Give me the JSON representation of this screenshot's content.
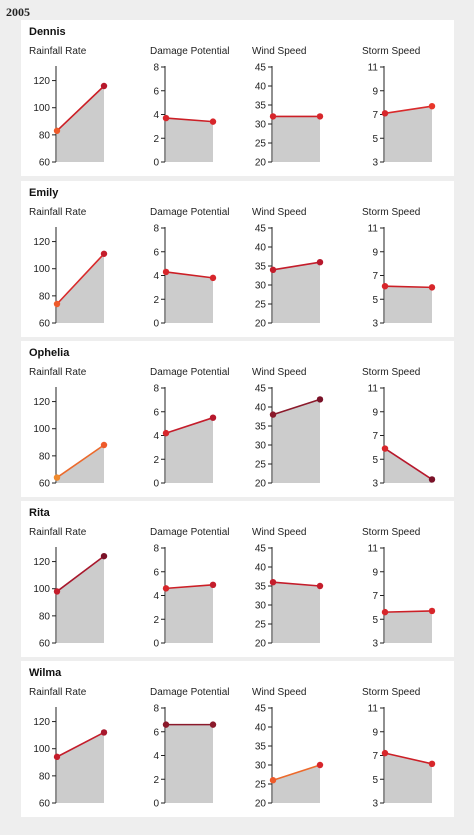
{
  "header": {
    "year": "2005"
  },
  "metric_labels": [
    "Rainfall Rate",
    "Damage Potential",
    "Wind Speed",
    "Storm Speed"
  ],
  "colors": {
    "area": "#cccccc",
    "axis": "#222222",
    "line": "#cc1f26",
    "line_light": "#ec6a2c",
    "point_dark": "#8b1a2b",
    "point_red": "#d7262b",
    "point_orange": "#ee5a2a"
  },
  "chart_data": [
    {
      "type": "line",
      "storm": "Dennis",
      "panels": [
        {
          "metric": "Rainfall Rate",
          "ylim": [
            60,
            130
          ],
          "ticks": [
            60,
            80,
            100,
            120
          ],
          "values": [
            83,
            116
          ],
          "point_colors": [
            "#ee5a2a",
            "#b7182c"
          ],
          "line_color": "#cc1f26"
        },
        {
          "metric": "Damage Potential",
          "ylim": [
            0,
            8
          ],
          "ticks": [
            0,
            2,
            4,
            6,
            8
          ],
          "values": [
            3.7,
            3.4
          ],
          "point_colors": [
            "#d7262b",
            "#d7262b"
          ],
          "line_color": "#cc1f26"
        },
        {
          "metric": "Wind Speed",
          "ylim": [
            20,
            45
          ],
          "ticks": [
            20,
            25,
            30,
            35,
            40,
            45
          ],
          "values": [
            32,
            32
          ],
          "point_colors": [
            "#d7262b",
            "#d7262b"
          ],
          "line_color": "#cc1f26"
        },
        {
          "metric": "Storm Speed",
          "ylim": [
            3,
            11
          ],
          "ticks": [
            3,
            5,
            7,
            9,
            11
          ],
          "values": [
            7.1,
            7.7
          ],
          "point_colors": [
            "#d7262b",
            "#e8362a"
          ],
          "line_color": "#d92a2b"
        }
      ]
    },
    {
      "type": "line",
      "storm": "Emily",
      "panels": [
        {
          "metric": "Rainfall Rate",
          "ylim": [
            60,
            130
          ],
          "ticks": [
            60,
            80,
            100,
            120
          ],
          "values": [
            74,
            111
          ],
          "point_colors": [
            "#ee5a2a",
            "#c41d2b"
          ],
          "line_color": "#d92a2b"
        },
        {
          "metric": "Damage Potential",
          "ylim": [
            0,
            8
          ],
          "ticks": [
            0,
            2,
            4,
            6,
            8
          ],
          "values": [
            4.3,
            3.8
          ],
          "point_colors": [
            "#d7262b",
            "#d7262b"
          ],
          "line_color": "#cc1f26"
        },
        {
          "metric": "Wind Speed",
          "ylim": [
            20,
            45
          ],
          "ticks": [
            20,
            25,
            30,
            35,
            40,
            45
          ],
          "values": [
            34,
            36
          ],
          "point_colors": [
            "#c41d2b",
            "#b7182c"
          ],
          "line_color": "#c41d2b"
        },
        {
          "metric": "Storm Speed",
          "ylim": [
            3,
            11
          ],
          "ticks": [
            3,
            5,
            7,
            9,
            11
          ],
          "values": [
            6.1,
            6.0
          ],
          "point_colors": [
            "#d7262b",
            "#d7262b"
          ],
          "line_color": "#cc1f26"
        }
      ]
    },
    {
      "type": "line",
      "storm": "Ophelia",
      "panels": [
        {
          "metric": "Rainfall Rate",
          "ylim": [
            60,
            130
          ],
          "ticks": [
            60,
            80,
            100,
            120
          ],
          "values": [
            64,
            88
          ],
          "point_colors": [
            "#f08a2e",
            "#ee5a2a"
          ],
          "line_color": "#ec6a2c"
        },
        {
          "metric": "Damage Potential",
          "ylim": [
            0,
            8
          ],
          "ticks": [
            0,
            2,
            4,
            6,
            8
          ],
          "values": [
            4.2,
            5.5
          ],
          "point_colors": [
            "#d7262b",
            "#b7182c"
          ],
          "line_color": "#c41d2b"
        },
        {
          "metric": "Wind Speed",
          "ylim": [
            20,
            45
          ],
          "ticks": [
            20,
            25,
            30,
            35,
            40,
            45
          ],
          "values": [
            38,
            42
          ],
          "point_colors": [
            "#8b1a2b",
            "#7a1228"
          ],
          "line_color": "#8b1a2b"
        },
        {
          "metric": "Storm Speed",
          "ylim": [
            3,
            11
          ],
          "ticks": [
            3,
            5,
            7,
            9,
            11
          ],
          "values": [
            5.9,
            3.3
          ],
          "point_colors": [
            "#d7262b",
            "#7a1228"
          ],
          "line_color": "#b7182c"
        }
      ]
    },
    {
      "type": "line",
      "storm": "Rita",
      "panels": [
        {
          "metric": "Rainfall Rate",
          "ylim": [
            60,
            130
          ],
          "ticks": [
            60,
            80,
            100,
            120
          ],
          "values": [
            98,
            124
          ],
          "point_colors": [
            "#c41d2b",
            "#7a1228"
          ],
          "line_color": "#a8172c"
        },
        {
          "metric": "Damage Potential",
          "ylim": [
            0,
            8
          ],
          "ticks": [
            0,
            2,
            4,
            6,
            8
          ],
          "values": [
            4.6,
            4.9
          ],
          "point_colors": [
            "#d7262b",
            "#c41d2b"
          ],
          "line_color": "#cc1f26"
        },
        {
          "metric": "Wind Speed",
          "ylim": [
            20,
            45
          ],
          "ticks": [
            20,
            25,
            30,
            35,
            40,
            45
          ],
          "values": [
            36,
            35
          ],
          "point_colors": [
            "#c41d2b",
            "#c41d2b"
          ],
          "line_color": "#c41d2b"
        },
        {
          "metric": "Storm Speed",
          "ylim": [
            3,
            11
          ],
          "ticks": [
            3,
            5,
            7,
            9,
            11
          ],
          "values": [
            5.6,
            5.7
          ],
          "point_colors": [
            "#d7262b",
            "#d7262b"
          ],
          "line_color": "#cc1f26"
        }
      ]
    },
    {
      "type": "line",
      "storm": "Wilma",
      "panels": [
        {
          "metric": "Rainfall Rate",
          "ylim": [
            60,
            130
          ],
          "ticks": [
            60,
            80,
            100,
            120
          ],
          "values": [
            94,
            112
          ],
          "point_colors": [
            "#c41d2b",
            "#a8172c"
          ],
          "line_color": "#c41d2b"
        },
        {
          "metric": "Damage Potential",
          "ylim": [
            0,
            8
          ],
          "ticks": [
            0,
            2,
            4,
            6,
            8
          ],
          "values": [
            6.6,
            6.6
          ],
          "point_colors": [
            "#8b1a2b",
            "#8b1a2b"
          ],
          "line_color": "#8b1a2b"
        },
        {
          "metric": "Wind Speed",
          "ylim": [
            20,
            45
          ],
          "ticks": [
            20,
            25,
            30,
            35,
            40,
            45
          ],
          "values": [
            26,
            30
          ],
          "point_colors": [
            "#ee5a2a",
            "#d7262b"
          ],
          "line_color": "#ec6a2c"
        },
        {
          "metric": "Storm Speed",
          "ylim": [
            3,
            11
          ],
          "ticks": [
            3,
            5,
            7,
            9,
            11
          ],
          "values": [
            7.2,
            6.3
          ],
          "point_colors": [
            "#d7262b",
            "#d7262b"
          ],
          "line_color": "#cc1f26"
        }
      ]
    }
  ]
}
